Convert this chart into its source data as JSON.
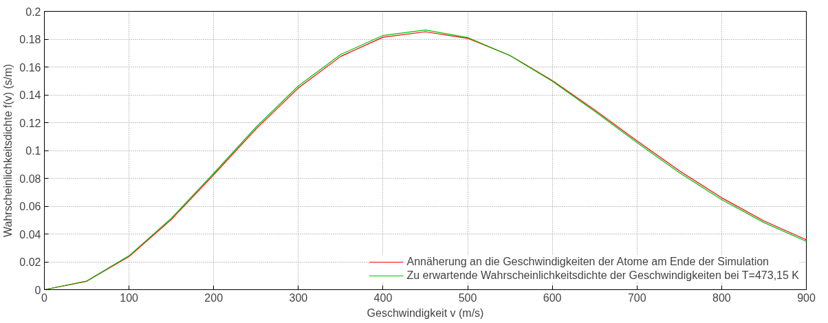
{
  "chart_data": {
    "type": "line",
    "xlabel": "Geschwindigkeit v (m/s)",
    "ylabel": "Wahrscheinlichkeitsdichte f(v) (s/m)",
    "x": [
      0,
      50,
      100,
      150,
      200,
      250,
      300,
      350,
      400,
      450,
      500,
      550,
      600,
      650,
      700,
      750,
      800,
      850,
      900
    ],
    "series": [
      {
        "name": "Annäherung an die Geschwindigkeiten der Atome am Ende der Simulation",
        "color": "#ff0000",
        "values": [
          0,
          0.006,
          0.0238,
          0.0505,
          0.0826,
          0.1155,
          0.1449,
          0.1676,
          0.1814,
          0.1853,
          0.1806,
          0.1683,
          0.1503,
          0.1291,
          0.1069,
          0.0854,
          0.066,
          0.0494,
          0.0358
        ]
      },
      {
        "name": "Zu erwartende Wahrscheinlichkeitsdichte der Geschwindigkeiten bei T=473,15 K",
        "color": "#00c000",
        "values": [
          0,
          0.0063,
          0.0244,
          0.0514,
          0.0837,
          0.1168,
          0.1464,
          0.169,
          0.1827,
          0.1866,
          0.1812,
          0.1682,
          0.1497,
          0.1282,
          0.1057,
          0.0841,
          0.0647,
          0.0482,
          0.0347
        ]
      }
    ],
    "xlim": [
      0,
      900
    ],
    "ylim": [
      0,
      0.2
    ],
    "xticks": [
      0,
      100,
      200,
      300,
      400,
      500,
      600,
      700,
      800,
      900
    ],
    "yticks": [
      0,
      0.02,
      0.04,
      0.06,
      0.08,
      0.1,
      0.12,
      0.14,
      0.16,
      0.18,
      0.2
    ],
    "grid": true,
    "legend": "bottom right",
    "marker": "none",
    "line_style": "solid"
  }
}
